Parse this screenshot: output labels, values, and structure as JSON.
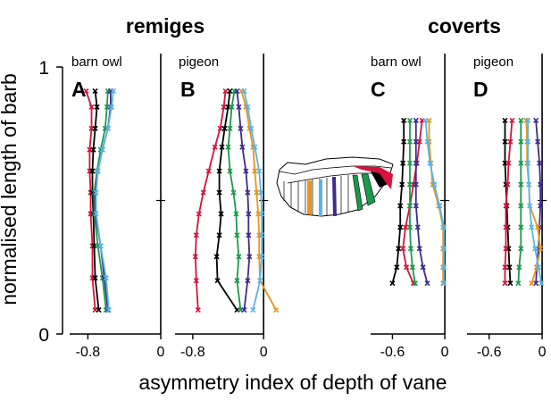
{
  "header": {
    "remiges_title": "remiges",
    "coverts_title": "coverts"
  },
  "axes": {
    "ylabel": "normalised length of barb",
    "xlabel": "asymmetry index of depth of vane",
    "ytick_1": "1",
    "ytick_0": "0"
  },
  "chart_data": [
    {
      "panel": "A",
      "label": "barn owl",
      "group": "remiges",
      "type": "line",
      "xlim": [
        -1.0,
        0.0
      ],
      "ylim": [
        0,
        1
      ],
      "xticks": [
        {
          "v": -0.8,
          "label": "-0.8"
        },
        {
          "v": 0,
          "label": "0"
        }
      ],
      "series": [
        {
          "color": "#d4143c",
          "x": [
            -0.82,
            -0.76,
            -0.76,
            -0.78,
            -0.78,
            -0.77,
            -0.77,
            -0.75,
            -0.75,
            -0.72
          ],
          "y": [
            0.91,
            0.85,
            0.77,
            0.69,
            0.61,
            0.53,
            0.45,
            0.33,
            0.21,
            0.09
          ]
        },
        {
          "color": "#000000",
          "x": [
            -0.72,
            -0.7,
            -0.72,
            -0.74,
            -0.75,
            -0.75,
            -0.74,
            -0.73,
            -0.72,
            -0.68
          ],
          "y": [
            0.91,
            0.85,
            0.77,
            0.69,
            0.61,
            0.53,
            0.45,
            0.33,
            0.21,
            0.09
          ]
        },
        {
          "color": "#1a9a4a",
          "x": [
            -0.58,
            -0.59,
            -0.61,
            -0.66,
            -0.7,
            -0.73,
            -0.73,
            -0.69,
            -0.64,
            -0.6
          ],
          "y": [
            0.91,
            0.85,
            0.77,
            0.69,
            0.61,
            0.53,
            0.45,
            0.33,
            0.21,
            0.09
          ]
        },
        {
          "color": "#3d2a8f",
          "x": [
            -0.55,
            -0.55,
            -0.58,
            -0.64,
            -0.69,
            -0.72,
            -0.72,
            -0.66,
            -0.62,
            -0.58
          ],
          "y": [
            0.91,
            0.85,
            0.77,
            0.69,
            0.61,
            0.53,
            0.45,
            0.33,
            0.21,
            0.09
          ]
        },
        {
          "color": "#5bb5e0",
          "x": [
            -0.52,
            -0.54,
            -0.58,
            -0.64,
            -0.69,
            -0.71,
            -0.71,
            -0.66,
            -0.6,
            -0.57
          ],
          "y": [
            0.91,
            0.85,
            0.77,
            0.69,
            0.61,
            0.53,
            0.45,
            0.33,
            0.21,
            0.09
          ]
        }
      ]
    },
    {
      "panel": "B",
      "label": "pigeon",
      "group": "remiges",
      "type": "line",
      "xlim": [
        -1.0,
        0.25
      ],
      "ylim": [
        0,
        1
      ],
      "xticks": [
        {
          "v": -0.8,
          "label": "-0.8"
        },
        {
          "v": 0,
          "label": "0"
        }
      ],
      "series": [
        {
          "color": "#d4143c",
          "x": [
            -0.43,
            -0.45,
            -0.49,
            -0.55,
            -0.62,
            -0.68,
            -0.73,
            -0.76,
            -0.77,
            -0.76,
            -0.74
          ],
          "y": [
            0.91,
            0.85,
            0.77,
            0.7,
            0.61,
            0.53,
            0.45,
            0.37,
            0.29,
            0.2,
            0.09
          ]
        },
        {
          "color": "#000000",
          "x": [
            -0.38,
            -0.4,
            -0.44,
            -0.47,
            -0.5,
            -0.5,
            -0.48,
            -0.5,
            -0.53,
            -0.52,
            -0.3
          ],
          "y": [
            0.91,
            0.85,
            0.77,
            0.7,
            0.61,
            0.53,
            0.45,
            0.37,
            0.29,
            0.2,
            0.09
          ]
        },
        {
          "color": "#1a9a4a",
          "x": [
            -0.33,
            -0.36,
            -0.38,
            -0.4,
            -0.38,
            -0.34,
            -0.31,
            -0.3,
            -0.28,
            -0.3,
            -0.26
          ],
          "y": [
            0.91,
            0.85,
            0.77,
            0.7,
            0.61,
            0.53,
            0.45,
            0.37,
            0.29,
            0.2,
            0.09
          ]
        },
        {
          "color": "#3d2a8f",
          "x": [
            -0.3,
            -0.28,
            -0.26,
            -0.24,
            -0.2,
            -0.18,
            -0.17,
            -0.17,
            -0.16,
            -0.18,
            -0.22
          ],
          "y": [
            0.91,
            0.85,
            0.77,
            0.7,
            0.61,
            0.53,
            0.45,
            0.37,
            0.29,
            0.2,
            0.09
          ]
        },
        {
          "color": "#e8961a",
          "x": [
            -0.25,
            -0.2,
            -0.16,
            -0.12,
            -0.1,
            -0.08,
            -0.06,
            -0.05,
            -0.05,
            -0.04,
            0.14
          ],
          "y": [
            0.91,
            0.85,
            0.77,
            0.7,
            0.61,
            0.53,
            0.45,
            0.37,
            0.29,
            0.2,
            0.09
          ]
        },
        {
          "color": "#5bb5e0",
          "x": [
            -0.22,
            -0.18,
            -0.14,
            -0.1,
            -0.05,
            -0.03,
            -0.02,
            -0.02,
            -0.02,
            -0.04,
            -0.12
          ],
          "y": [
            0.91,
            0.85,
            0.77,
            0.7,
            0.61,
            0.53,
            0.45,
            0.37,
            0.29,
            0.2,
            0.09
          ]
        }
      ]
    },
    {
      "panel": "C",
      "label": "barn owl",
      "group": "coverts",
      "type": "line",
      "xlim": [
        -0.85,
        0.05
      ],
      "ylim": [
        0,
        1
      ],
      "xticks": [
        {
          "v": -0.6,
          "label": "-0.6"
        },
        {
          "v": 0,
          "label": "0"
        }
      ],
      "series": [
        {
          "color": "#000000",
          "x": [
            -0.47,
            -0.47,
            -0.48,
            -0.49,
            -0.51,
            -0.51,
            -0.53,
            -0.55,
            -0.6
          ],
          "y": [
            0.8,
            0.72,
            0.64,
            0.56,
            0.48,
            0.4,
            0.32,
            0.25,
            0.19
          ]
        },
        {
          "color": "#d4143c",
          "x": [
            -0.26,
            -0.29,
            -0.32,
            -0.36,
            -0.4,
            -0.45,
            -0.48,
            -0.44,
            -0.36
          ],
          "y": [
            0.8,
            0.72,
            0.64,
            0.56,
            0.48,
            0.4,
            0.32,
            0.25,
            0.19
          ]
        },
        {
          "color": "#1a9a4a",
          "x": [
            -0.4,
            -0.4,
            -0.4,
            -0.4,
            -0.4,
            -0.4,
            -0.39,
            -0.37,
            -0.34
          ],
          "y": [
            0.8,
            0.72,
            0.64,
            0.56,
            0.48,
            0.4,
            0.32,
            0.25,
            0.19
          ]
        },
        {
          "color": "#3d2a8f",
          "x": [
            -0.33,
            -0.33,
            -0.33,
            -0.33,
            -0.33,
            -0.31,
            -0.29,
            -0.25,
            -0.2
          ],
          "y": [
            0.8,
            0.72,
            0.64,
            0.56,
            0.48,
            0.4,
            0.32,
            0.25,
            0.19
          ]
        },
        {
          "color": "#e8961a",
          "x": [
            -0.18,
            -0.18,
            -0.16,
            -0.14,
            -0.07,
            -0.02,
            -0.02,
            -0.02,
            -0.02
          ],
          "y": [
            0.8,
            0.72,
            0.64,
            0.56,
            0.48,
            0.4,
            0.32,
            0.25,
            0.19
          ]
        },
        {
          "color": "#5bb5e0",
          "x": [
            -0.22,
            -0.2,
            -0.17,
            -0.12,
            -0.06,
            -0.01,
            -0.01,
            -0.01,
            -0.01
          ],
          "y": [
            0.8,
            0.72,
            0.64,
            0.56,
            0.48,
            0.4,
            0.32,
            0.25,
            0.19
          ]
        }
      ]
    },
    {
      "panel": "D",
      "label": "pigeon",
      "group": "coverts",
      "type": "line",
      "xlim": [
        -0.85,
        0.05
      ],
      "ylim": [
        0,
        1
      ],
      "xticks": [
        {
          "v": -0.6,
          "label": "-0.6"
        },
        {
          "v": 0,
          "label": "0"
        }
      ],
      "series": [
        {
          "color": "#000000",
          "x": [
            -0.42,
            -0.42,
            -0.42,
            -0.41,
            -0.4,
            -0.39,
            -0.38,
            -0.37,
            -0.36
          ],
          "y": [
            0.8,
            0.72,
            0.64,
            0.56,
            0.48,
            0.4,
            0.32,
            0.25,
            0.19
          ]
        },
        {
          "color": "#d4143c",
          "x": [
            -0.34,
            -0.36,
            -0.38,
            -0.39,
            -0.41,
            -0.41,
            -0.41,
            -0.42,
            -0.42
          ],
          "y": [
            0.8,
            0.72,
            0.64,
            0.56,
            0.48,
            0.4,
            0.32,
            0.25,
            0.19
          ]
        },
        {
          "color": "#1a9a4a",
          "x": [
            -0.24,
            -0.24,
            -0.24,
            -0.24,
            -0.24,
            -0.24,
            -0.24,
            -0.26,
            -0.27
          ],
          "y": [
            0.8,
            0.72,
            0.64,
            0.56,
            0.48,
            0.4,
            0.32,
            0.25,
            0.19
          ]
        },
        {
          "color": "#3d2a8f",
          "x": [
            -0.07,
            -0.05,
            -0.03,
            -0.02,
            -0.02,
            -0.03,
            -0.04,
            -0.06,
            -0.07
          ],
          "y": [
            0.8,
            0.72,
            0.64,
            0.56,
            0.48,
            0.4,
            0.32,
            0.25,
            0.19
          ]
        },
        {
          "color": "#e8961a",
          "x": [
            -0.18,
            -0.17,
            -0.17,
            -0.15,
            -0.14,
            -0.05,
            -0.02,
            -0.06,
            -0.12
          ],
          "y": [
            0.8,
            0.72,
            0.64,
            0.56,
            0.48,
            0.4,
            0.32,
            0.25,
            0.19
          ]
        },
        {
          "color": "#5bb5e0",
          "x": [
            -0.16,
            -0.16,
            -0.16,
            -0.15,
            -0.14,
            -0.12,
            -0.08,
            -0.04,
            -0.01
          ],
          "y": [
            0.8,
            0.72,
            0.64,
            0.56,
            0.48,
            0.4,
            0.32,
            0.25,
            0.19
          ]
        }
      ]
    }
  ]
}
